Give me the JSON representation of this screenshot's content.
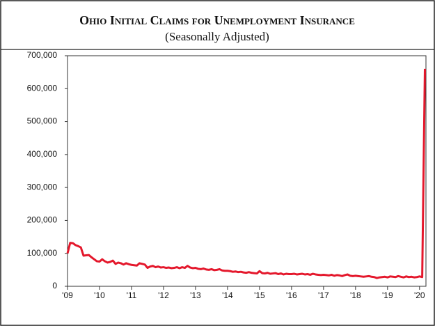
{
  "chart_data": {
    "type": "line",
    "title": "Ohio Initial Claims for Unemployment Insurance",
    "subtitle": "(Seasonally Adjusted)",
    "x": [
      2009,
      2009.083,
      2009.167,
      2009.25,
      2009.333,
      2009.417,
      2009.5,
      2009.583,
      2009.667,
      2009.75,
      2009.833,
      2009.917,
      2010,
      2010.083,
      2010.167,
      2010.25,
      2010.333,
      2010.417,
      2010.5,
      2010.583,
      2010.667,
      2010.75,
      2010.833,
      2010.917,
      2011,
      2011.083,
      2011.167,
      2011.25,
      2011.333,
      2011.417,
      2011.5,
      2011.583,
      2011.667,
      2011.75,
      2011.833,
      2011.917,
      2012,
      2012.083,
      2012.167,
      2012.25,
      2012.333,
      2012.417,
      2012.5,
      2012.583,
      2012.667,
      2012.75,
      2012.833,
      2012.917,
      2013,
      2013.083,
      2013.167,
      2013.25,
      2013.333,
      2013.417,
      2013.5,
      2013.583,
      2013.667,
      2013.75,
      2013.833,
      2013.917,
      2014,
      2014.083,
      2014.167,
      2014.25,
      2014.333,
      2014.417,
      2014.5,
      2014.583,
      2014.667,
      2014.75,
      2014.833,
      2014.917,
      2015,
      2015.083,
      2015.167,
      2015.25,
      2015.333,
      2015.417,
      2015.5,
      2015.583,
      2015.667,
      2015.75,
      2015.833,
      2015.917,
      2016,
      2016.083,
      2016.167,
      2016.25,
      2016.333,
      2016.417,
      2016.5,
      2016.583,
      2016.667,
      2016.75,
      2016.833,
      2016.917,
      2017,
      2017.083,
      2017.167,
      2017.25,
      2017.333,
      2017.417,
      2017.5,
      2017.583,
      2017.667,
      2017.75,
      2017.833,
      2017.917,
      2018,
      2018.083,
      2018.167,
      2018.25,
      2018.333,
      2018.417,
      2018.5,
      2018.583,
      2018.667,
      2018.75,
      2018.833,
      2018.917,
      2019,
      2019.083,
      2019.167,
      2019.25,
      2019.333,
      2019.417,
      2019.5,
      2019.583,
      2019.667,
      2019.75,
      2019.833,
      2019.917,
      2020,
      2020.083,
      2020.167
    ],
    "series": [
      {
        "name": "Initial claims",
        "color": "#e4182c",
        "values": [
          100000,
          132000,
          131000,
          125000,
          122000,
          118000,
          93000,
          94000,
          95000,
          88000,
          82000,
          76000,
          75000,
          82000,
          76000,
          72000,
          74000,
          78000,
          68000,
          72000,
          70000,
          66000,
          70000,
          67000,
          65000,
          64000,
          63000,
          70000,
          68000,
          66000,
          56000,
          60000,
          62000,
          58000,
          60000,
          57000,
          58000,
          56000,
          57000,
          55000,
          56000,
          58000,
          55000,
          58000,
          56000,
          62000,
          57000,
          55000,
          56000,
          53000,
          52000,
          54000,
          51000,
          50000,
          52000,
          49000,
          50000,
          52000,
          48000,
          47000,
          47000,
          46000,
          44000,
          45000,
          43000,
          44000,
          42000,
          41000,
          43000,
          41000,
          40000,
          39000,
          46000,
          40000,
          39000,
          41000,
          38000,
          39000,
          40000,
          37000,
          39000,
          36000,
          38000,
          37000,
          37000,
          38000,
          36000,
          37000,
          38000,
          36000,
          37000,
          35000,
          38000,
          36000,
          35000,
          34000,
          35000,
          34000,
          33000,
          35000,
          32000,
          34000,
          33000,
          31000,
          34000,
          36000,
          32000,
          31000,
          32000,
          31000,
          30000,
          29000,
          30000,
          31000,
          29000,
          28000,
          25000,
          27000,
          28000,
          29000,
          27000,
          30000,
          29000,
          28000,
          31000,
          29000,
          27000,
          30000,
          28000,
          29000,
          27000,
          28000,
          30000,
          28000,
          660000
        ]
      }
    ],
    "xlim": [
      2009,
      2020.2
    ],
    "xticks": [
      {
        "value": 2009,
        "label": "'09"
      },
      {
        "value": 2010,
        "label": "'10"
      },
      {
        "value": 2011,
        "label": "'11"
      },
      {
        "value": 2012,
        "label": "'12"
      },
      {
        "value": 2013,
        "label": "'13"
      },
      {
        "value": 2014,
        "label": "'14"
      },
      {
        "value": 2015,
        "label": "'15"
      },
      {
        "value": 2016,
        "label": "'16"
      },
      {
        "value": 2017,
        "label": "'17"
      },
      {
        "value": 2018,
        "label": "'18"
      },
      {
        "value": 2019,
        "label": "'19"
      },
      {
        "value": 2020,
        "label": "'20"
      }
    ],
    "ylim": [
      0,
      700000
    ],
    "yticks": [
      0,
      {
        "value": 100000,
        "label": "100,000"
      },
      {
        "value": 200000,
        "label": "200,000"
      },
      {
        "value": 300000,
        "label": "300,000"
      },
      {
        "value": 400000,
        "label": "400,000"
      },
      {
        "value": 500000,
        "label": "500,000"
      },
      {
        "value": 600000,
        "label": "600,000"
      },
      {
        "value": 700000,
        "label": "700,000"
      }
    ],
    "grid": false
  }
}
